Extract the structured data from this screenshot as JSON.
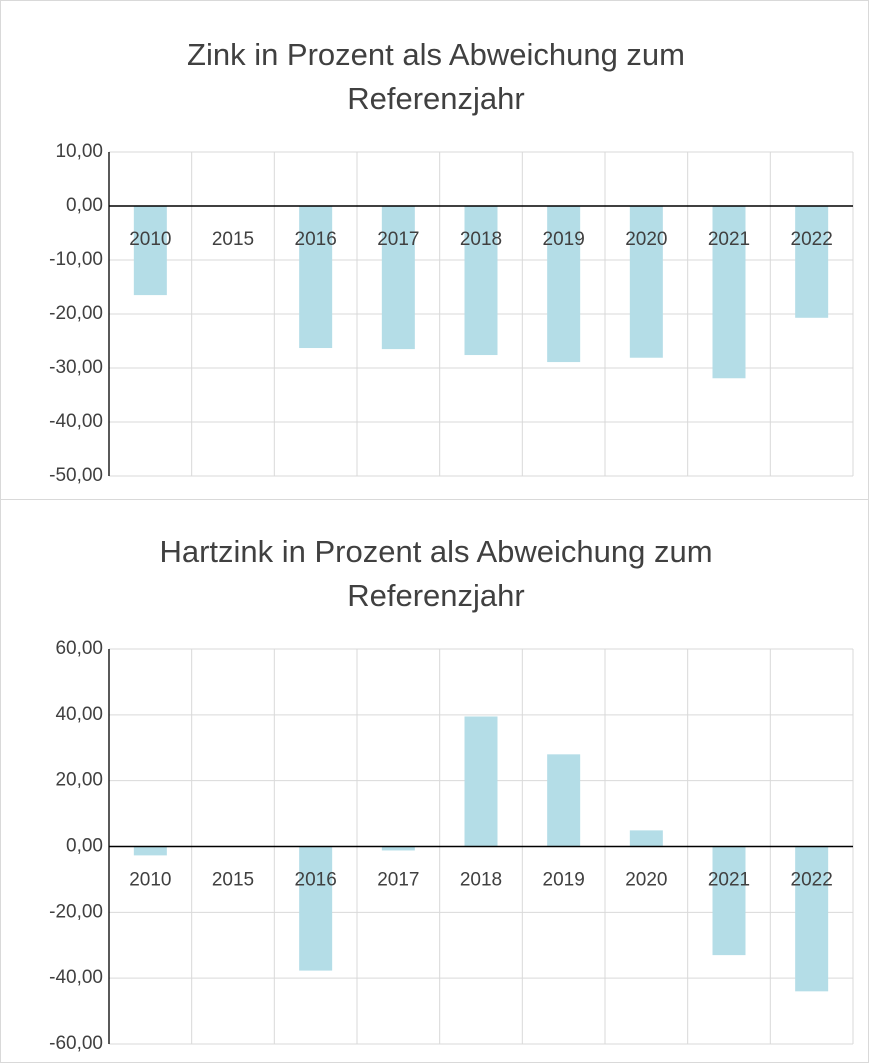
{
  "chart_data": [
    {
      "type": "bar",
      "title": "Zink in Prozent als Abweichung zum Referenzjahr",
      "categories": [
        "2010",
        "2015",
        "2016",
        "2017",
        "2018",
        "2019",
        "2020",
        "2021",
        "2022"
      ],
      "values": [
        -16.5,
        0,
        -26.3,
        -26.5,
        -27.6,
        -28.9,
        -28.1,
        -31.9,
        -20.7
      ],
      "color": "#b4dde7",
      "ylim": [
        -50,
        10
      ],
      "yticks": [
        {
          "value": -50,
          "label": "-50,00"
        },
        {
          "value": -40,
          "label": "-40,00"
        },
        {
          "value": -30,
          "label": "-30,00"
        },
        {
          "value": -20,
          "label": "-20,00"
        },
        {
          "value": -10,
          "label": "-10,00"
        },
        {
          "value": 0,
          "label": "0,00"
        },
        {
          "value": 10,
          "label": "10,00"
        }
      ],
      "grid": true
    },
    {
      "type": "bar",
      "title": "Hartzink in Prozent als Abweichung zum Referenzjahr",
      "categories": [
        "2010",
        "2015",
        "2016",
        "2017",
        "2018",
        "2019",
        "2020",
        "2021",
        "2022"
      ],
      "values": [
        -2.7,
        0,
        -37.7,
        -1.2,
        39.5,
        28.0,
        4.9,
        -33.0,
        -44.0
      ],
      "color": "#b4dde7",
      "ylim": [
        -60,
        60
      ],
      "yticks": [
        {
          "value": -60,
          "label": "-60,00"
        },
        {
          "value": -40,
          "label": "-40,00"
        },
        {
          "value": -20,
          "label": "-20,00"
        },
        {
          "value": 0,
          "label": "0,00"
        },
        {
          "value": 20,
          "label": "20,00"
        },
        {
          "value": 40,
          "label": "40,00"
        },
        {
          "value": 60,
          "label": "60,00"
        }
      ],
      "grid": true
    }
  ]
}
